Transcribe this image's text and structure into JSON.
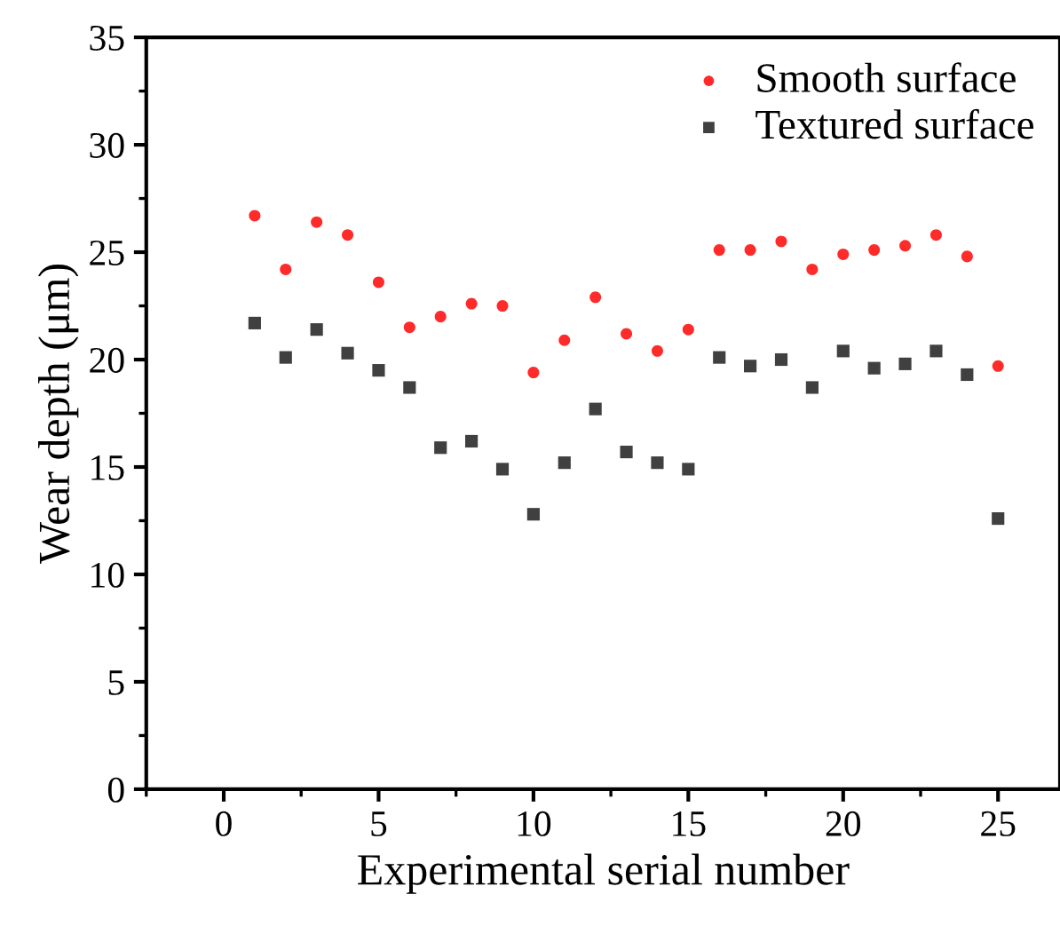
{
  "chart_data": {
    "type": "scatter",
    "xlabel": "Experimental serial number",
    "ylabel": "Wear depth (μm)",
    "x": [
      1,
      2,
      3,
      4,
      5,
      6,
      7,
      8,
      9,
      10,
      11,
      12,
      13,
      14,
      15,
      16,
      17,
      18,
      19,
      20,
      21,
      22,
      23,
      24,
      25
    ],
    "series": [
      {
        "name": "Smooth surface",
        "color": "#ff2a2a",
        "marker": "circle",
        "values": [
          26.7,
          24.2,
          26.4,
          25.8,
          23.6,
          21.5,
          22.0,
          22.6,
          22.5,
          19.4,
          20.9,
          22.9,
          21.2,
          20.4,
          21.4,
          25.1,
          25.1,
          25.5,
          24.2,
          24.9,
          25.1,
          25.3,
          25.8,
          24.8,
          19.7
        ]
      },
      {
        "name": "Textured surface",
        "color": "#404040",
        "marker": "square",
        "values": [
          21.7,
          20.1,
          21.4,
          20.3,
          19.5,
          18.7,
          15.9,
          16.2,
          14.9,
          12.8,
          15.2,
          17.7,
          15.7,
          15.2,
          14.9,
          20.1,
          19.7,
          20.0,
          18.7,
          20.4,
          19.6,
          19.8,
          20.4,
          19.3,
          12.6
        ]
      }
    ],
    "xlim": [
      -2.5,
      27
    ],
    "xticks": [
      0,
      5,
      10,
      15,
      20,
      25
    ],
    "ylim": [
      0,
      35
    ],
    "yticks": [
      0,
      5,
      10,
      15,
      20,
      25,
      30,
      35
    ],
    "grid": false,
    "legend": "top right"
  }
}
